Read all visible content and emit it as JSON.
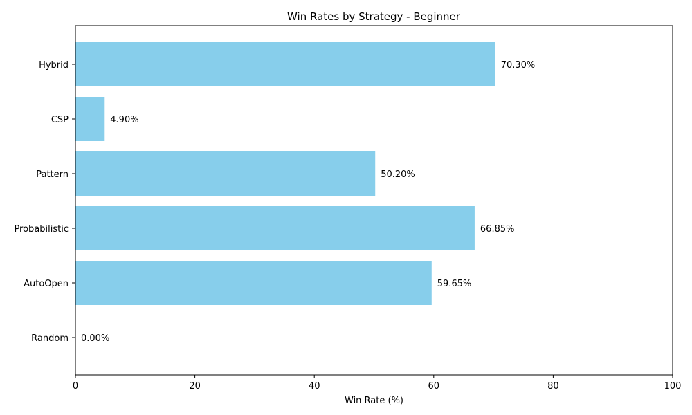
{
  "chart_data": {
    "type": "bar",
    "orientation": "horizontal",
    "title": "Win Rates by Strategy - Beginner",
    "xlabel": "Win Rate (%)",
    "ylabel": "",
    "xlim": [
      0,
      100
    ],
    "xticks": [
      0,
      20,
      40,
      60,
      80,
      100
    ],
    "categories": [
      "Random",
      "AutoOpen",
      "Probabilistic",
      "Pattern",
      "CSP",
      "Hybrid"
    ],
    "values": [
      0.0,
      59.65,
      66.85,
      50.2,
      4.9,
      70.3
    ],
    "data_labels": [
      "0.00%",
      "59.65%",
      "66.85%",
      "50.20%",
      "4.90%",
      "70.30%"
    ],
    "bar_color": "#87ceeb",
    "grid": false,
    "legend": "none"
  }
}
